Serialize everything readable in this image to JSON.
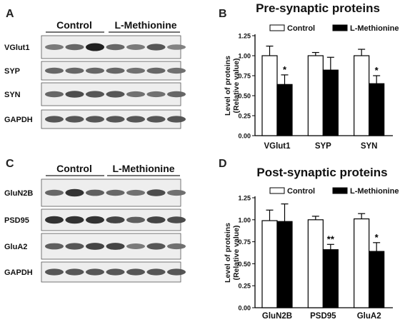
{
  "panels": {
    "A": {
      "letter": "A",
      "group_labels": [
        "Control",
        "L-Methionine"
      ],
      "rows": [
        {
          "label": "VGlut1",
          "intensity": [
            0.45,
            0.55,
            0.95,
            0.55,
            0.45,
            0.65,
            0.4
          ]
        },
        {
          "label": "SYP",
          "intensity": [
            0.55,
            0.55,
            0.55,
            0.55,
            0.5,
            0.55,
            0.5
          ]
        },
        {
          "label": "SYN",
          "intensity": [
            0.55,
            0.7,
            0.65,
            0.65,
            0.5,
            0.5,
            0.55
          ]
        },
        {
          "label": "GAPDH",
          "intensity": [
            0.65,
            0.65,
            0.65,
            0.65,
            0.65,
            0.65,
            0.65
          ]
        }
      ]
    },
    "C": {
      "letter": "C",
      "group_labels": [
        "Control",
        "L-Methionine"
      ],
      "rows": [
        {
          "label": "GluN2B",
          "intensity": [
            0.55,
            0.85,
            0.6,
            0.55,
            0.5,
            0.7,
            0.5
          ]
        },
        {
          "label": "PSD95",
          "intensity": [
            0.85,
            0.85,
            0.85,
            0.75,
            0.6,
            0.75,
            0.7
          ]
        },
        {
          "label": "GluA2",
          "intensity": [
            0.6,
            0.65,
            0.75,
            0.75,
            0.45,
            0.65,
            0.5
          ]
        },
        {
          "label": "GAPDH",
          "intensity": [
            0.65,
            0.65,
            0.65,
            0.65,
            0.65,
            0.65,
            0.65
          ]
        }
      ]
    }
  },
  "chart_data": [
    {
      "panel": "B",
      "type": "bar",
      "title": "Pre-synaptic proteins",
      "ylabel_line1": "Level of proteins",
      "ylabel_line2": "(Relative value)",
      "categories": [
        "VGlut1",
        "SYP",
        "SYN"
      ],
      "ylim": [
        0,
        1.25
      ],
      "yticks": [
        "0.00",
        "0.25",
        "0.50",
        "0.75",
        "1.00",
        "1.25"
      ],
      "legend_position": "top",
      "series": [
        {
          "name": "Control",
          "color": "#ffffff",
          "values": [
            1.0,
            1.0,
            1.0
          ],
          "errors": [
            0.12,
            0.04,
            0.08
          ]
        },
        {
          "name": "L-Methionine",
          "color": "#000000",
          "values": [
            0.64,
            0.82,
            0.65
          ],
          "errors": [
            0.12,
            0.16,
            0.1
          ]
        }
      ],
      "significance": [
        "*",
        "",
        "*"
      ]
    },
    {
      "panel": "D",
      "type": "bar",
      "title": "Post-synaptic proteins",
      "ylabel_line1": "Level of proteins",
      "ylabel_line2": "(Relative value)",
      "categories": [
        "GluN2B",
        "PSD95",
        "GluA2"
      ],
      "ylim": [
        0,
        1.25
      ],
      "yticks": [
        "0.00",
        "0.25",
        "0.50",
        "0.75",
        "1.00",
        "1.25"
      ],
      "legend_position": "top",
      "series": [
        {
          "name": "Control",
          "color": "#ffffff",
          "values": [
            0.99,
            1.0,
            1.01
          ],
          "errors": [
            0.12,
            0.04,
            0.06
          ]
        },
        {
          "name": "L-Methionine",
          "color": "#000000",
          "values": [
            0.98,
            0.66,
            0.64
          ],
          "errors": [
            0.2,
            0.06,
            0.1
          ]
        }
      ],
      "significance": [
        "",
        "**",
        "*"
      ]
    }
  ]
}
